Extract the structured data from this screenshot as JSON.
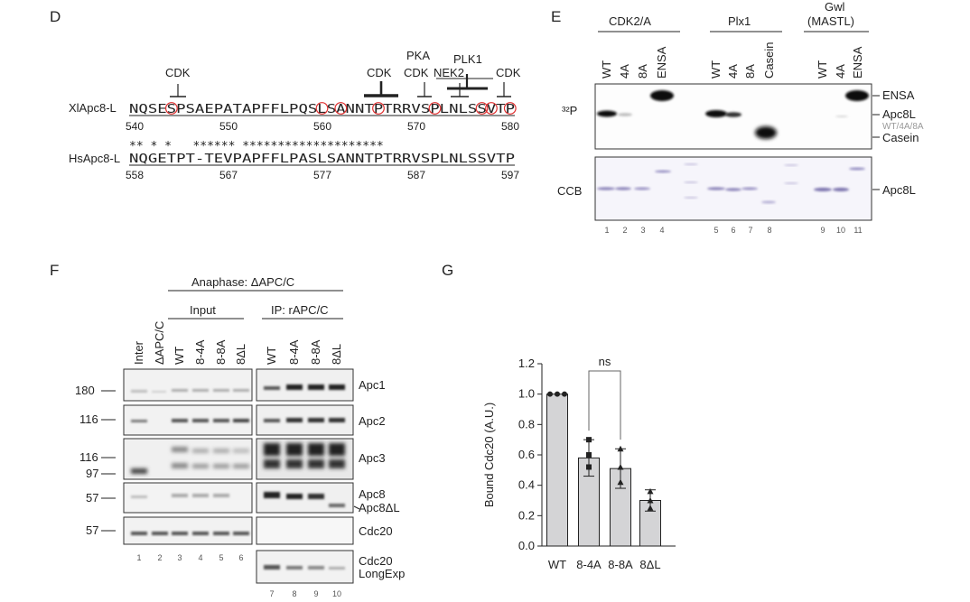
{
  "panels": {
    "D": "D",
    "E": "E",
    "F": "F",
    "G": "G"
  },
  "panel_d": {
    "xl_label": "XlApc8-L",
    "hs_label": "HsApc8-L",
    "xl_seq": "NQSESPSAEPATAPFFLPQSLSANNTPTRRVSPLNLSSVTP",
    "hs_seq": "NQGETPT-TEVPAPFFLPASLSANNTPTRRVSPLNLSSVTP",
    "conservation": "** * *   ****** ********************",
    "xl_numbers": [
      "540",
      "550",
      "560",
      "570",
      "580"
    ],
    "hs_numbers": [
      "558",
      "567",
      "577",
      "587",
      "597"
    ],
    "kinases": {
      "cdk1": "CDK",
      "cdk2": "CDK",
      "pka": "PKA",
      "cdk3": "CDK",
      "nek2": "NEK2",
      "plk1": "PLK1",
      "cdk4": "CDK"
    }
  },
  "panel_e": {
    "groups": [
      "CDK2/A",
      "Plx1",
      "Gwl\n(MASTL)"
    ],
    "group_1": "CDK2/A",
    "group_2": "Plx1",
    "group_3a": "Gwl",
    "group_3b": "(MASTL)",
    "lanes": [
      "WT",
      "4A",
      "8A",
      "ENSA",
      "WT",
      "4A",
      "8A",
      "Casein",
      "WT",
      "4A",
      "ENSA"
    ],
    "lane_numbers": [
      "1",
      "2",
      "3",
      "4",
      "5",
      "6",
      "7",
      "8",
      "9",
      "10",
      "11"
    ],
    "p32_label": "³²P",
    "ccb_label": "CCB",
    "right_labels": {
      "ensa": "ENSA",
      "apc8l": "Apc8L",
      "variants": "WT/4A/8A",
      "casein": "Casein",
      "apc8l_ccb": "Apc8L"
    }
  },
  "panel_f": {
    "header": "Anaphase: ΔAPC/C",
    "input": "Input",
    "ip": "IP: rAPC/C",
    "lanes": [
      "Inter",
      "ΔAPC/C",
      "WT",
      "8-4A",
      "8-8A",
      "8ΔL",
      "WT",
      "8-4A",
      "8-8A",
      "8ΔL"
    ],
    "mw": {
      "m180": "180",
      "m116a": "116",
      "m116b": "116",
      "m97": "97",
      "m57a": "57",
      "m57b": "57"
    },
    "blots": {
      "apc1": "Apc1",
      "apc2": "Apc2",
      "apc3": "Apc3",
      "apc8": "Apc8",
      "apc8dl": "Apc8ΔL",
      "cdc20": "Cdc20",
      "cdc20long1": "Cdc20",
      "cdc20long2": "LongExp"
    },
    "lane_numbers_left": [
      "1",
      "2",
      "3",
      "4",
      "5",
      "6"
    ],
    "lane_numbers_right": [
      "7",
      "8",
      "9",
      "10"
    ]
  },
  "chart_data": {
    "type": "bar",
    "categories": [
      "WT",
      "8-4A",
      "8-8A",
      "8ΔL"
    ],
    "values": [
      1.0,
      0.58,
      0.51,
      0.3
    ],
    "errors": [
      0.0,
      0.12,
      0.13,
      0.07
    ],
    "points": [
      [
        1.0,
        1.0,
        1.0
      ],
      [
        0.7,
        0.6,
        0.52
      ],
      [
        0.64,
        0.52,
        0.42
      ],
      [
        0.36,
        0.3,
        0.25
      ]
    ],
    "ylabel": "Bound Cdc20 (A.U.)",
    "ylim": [
      0,
      1.2
    ],
    "yticks": [
      "0.0",
      "0.2",
      "0.4",
      "0.6",
      "0.8",
      "1.0",
      "1.2"
    ],
    "annotation": "ns",
    "bar_color": "#d4d4d6"
  }
}
